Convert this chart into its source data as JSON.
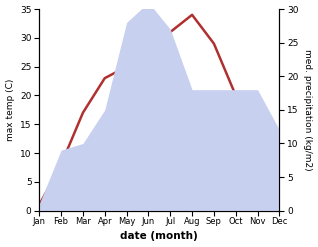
{
  "months": [
    "Jan",
    "Feb",
    "Mar",
    "Apr",
    "May",
    "Jun",
    "Jul",
    "Aug",
    "Sep",
    "Oct",
    "Nov",
    "Dec"
  ],
  "x": [
    0,
    1,
    2,
    3,
    4,
    5,
    6,
    7,
    8,
    9,
    10,
    11
  ],
  "temperature": [
    1,
    8,
    17,
    23,
    25,
    32,
    31,
    34,
    29,
    20,
    19,
    12
  ],
  "precipitation": [
    1,
    9,
    10,
    15,
    28,
    31,
    27,
    18,
    18,
    18,
    18,
    12
  ],
  "temp_color": "#b03030",
  "precip_fill_color": "#c8d0f0",
  "left_ylabel": "max temp (C)",
  "right_ylabel": "med. precipitation (kg/m2)",
  "xlabel": "date (month)",
  "ylim_left": [
    0,
    35
  ],
  "ylim_right": [
    0,
    30
  ],
  "left_yticks": [
    0,
    5,
    10,
    15,
    20,
    25,
    30,
    35
  ],
  "right_yticks": [
    0,
    5,
    10,
    15,
    20,
    25,
    30
  ],
  "background_color": "#ffffff"
}
